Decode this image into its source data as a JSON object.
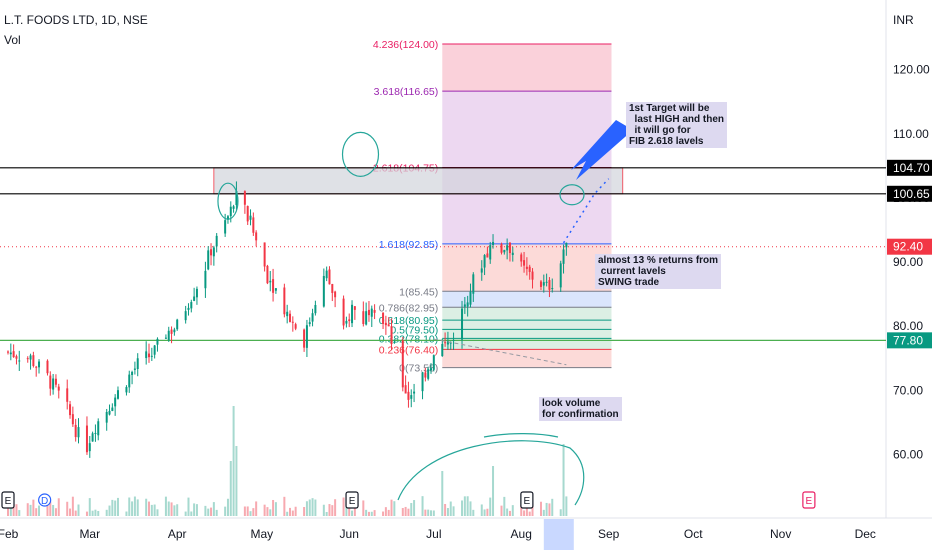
{
  "header": {
    "title": "L.T. FOODS LTD, 1D, NSE",
    "volume_label": "Vol",
    "currency": "INR"
  },
  "chart_data": {
    "type": "candlestick",
    "title": "L.T. FOODS LTD, 1D, NSE",
    "currency": "INR",
    "ylim": [
      55.4,
      126.5
    ],
    "y_ticks": [
      60,
      70,
      80,
      90,
      100,
      110,
      120
    ],
    "y_tick_labels": [
      "60.00",
      "70.00",
      "80.00",
      "90.00",
      "100.00",
      "110.00",
      "120.00"
    ],
    "x_labels": [
      "Feb",
      "Mar",
      "Apr",
      "May",
      "Jun",
      "Jul",
      "Aug",
      "Sep",
      "Oct",
      "Nov",
      "Dec"
    ],
    "x_label_days": [
      0,
      29,
      60,
      90,
      121,
      151,
      182,
      213,
      243,
      274,
      304
    ],
    "last_day": 198,
    "closes": [
      {
        "day": 0,
        "close": 76
      },
      {
        "day": 8,
        "close": 75
      },
      {
        "day": 14,
        "close": 72
      },
      {
        "day": 20,
        "close": 68
      },
      {
        "day": 25,
        "close": 63
      },
      {
        "day": 27,
        "close": 60
      },
      {
        "day": 30,
        "close": 64
      },
      {
        "day": 35,
        "close": 67
      },
      {
        "day": 41,
        "close": 71
      },
      {
        "day": 46,
        "close": 74
      },
      {
        "day": 52,
        "close": 76
      },
      {
        "day": 56,
        "close": 79
      },
      {
        "day": 60,
        "close": 80
      },
      {
        "day": 64,
        "close": 84
      },
      {
        "day": 69,
        "close": 88
      },
      {
        "day": 72,
        "close": 92
      },
      {
        "day": 75,
        "close": 94
      },
      {
        "day": 78,
        "close": 97
      },
      {
        "day": 81,
        "close": 100
      },
      {
        "day": 83,
        "close": 99
      },
      {
        "day": 86,
        "close": 96
      },
      {
        "day": 89,
        "close": 92
      },
      {
        "day": 92,
        "close": 88
      },
      {
        "day": 96,
        "close": 85
      },
      {
        "day": 99,
        "close": 82
      },
      {
        "day": 102,
        "close": 80
      },
      {
        "day": 104,
        "close": 76
      },
      {
        "day": 107,
        "close": 81
      },
      {
        "day": 110,
        "close": 86
      },
      {
        "day": 113,
        "close": 88
      },
      {
        "day": 116,
        "close": 84
      },
      {
        "day": 119,
        "close": 79
      },
      {
        "day": 122,
        "close": 83
      },
      {
        "day": 126,
        "close": 81
      },
      {
        "day": 129,
        "close": 84
      },
      {
        "day": 132,
        "close": 82
      },
      {
        "day": 135,
        "close": 79
      },
      {
        "day": 138,
        "close": 75
      },
      {
        "day": 140,
        "close": 71
      },
      {
        "day": 142,
        "close": 69
      },
      {
        "day": 145,
        "close": 71
      },
      {
        "day": 148,
        "close": 73
      },
      {
        "day": 151,
        "close": 75
      },
      {
        "day": 154,
        "close": 77
      },
      {
        "day": 157,
        "close": 77.5
      },
      {
        "day": 160,
        "close": 81
      },
      {
        "day": 163,
        "close": 85
      },
      {
        "day": 166,
        "close": 88
      },
      {
        "day": 169,
        "close": 91
      },
      {
        "day": 172,
        "close": 93
      },
      {
        "day": 175,
        "close": 92
      },
      {
        "day": 177,
        "close": 93
      },
      {
        "day": 180,
        "close": 91
      },
      {
        "day": 182,
        "close": 89
      },
      {
        "day": 185,
        "close": 88
      },
      {
        "day": 188,
        "close": 87
      },
      {
        "day": 191,
        "close": 86
      },
      {
        "day": 193,
        "close": 87
      },
      {
        "day": 195,
        "close": 88
      },
      {
        "day": 197,
        "close": 92
      },
      {
        "day": 198,
        "close": 92.4
      }
    ],
    "price_labels": [
      {
        "value": 104.7,
        "label": "104.70",
        "style": "black"
      },
      {
        "value": 100.65,
        "label": "100.65",
        "style": "black"
      },
      {
        "value": 92.4,
        "label": "92.40",
        "style": "red"
      },
      {
        "value": 77.8,
        "label": "77.80",
        "style": "green"
      }
    ],
    "fibonacci": {
      "start_day": 154,
      "end_day": 214,
      "levels": [
        {
          "ratio": "4.236",
          "price": 124.0,
          "label": "4.236(124.00)",
          "fill": "#f9c9d3",
          "line": "#e91e63"
        },
        {
          "ratio": "3.618",
          "price": 116.65,
          "label": "3.618(116.65)",
          "fill": "#ead1ee",
          "line": "#9c27b0"
        },
        {
          "ratio": "2.618",
          "price": 104.75,
          "label": "2.618(104.75)",
          "fill": "#ead1ee",
          "line": "#e91e63"
        },
        {
          "ratio": "1.618",
          "price": 92.85,
          "label": "1.618(92.85)",
          "fill": "#fbd4d1",
          "line": "#2962ff"
        },
        {
          "ratio": "1",
          "price": 85.45,
          "label": "1(85.45)",
          "fill": "#d4e1fb",
          "line": "#787b86"
        },
        {
          "ratio": "0.786",
          "price": 82.95,
          "label": "0.786(82.95)",
          "fill": "#d6ecdf",
          "line": "#787b86"
        },
        {
          "ratio": "0.618",
          "price": 80.95,
          "label": "0.618(80.95)",
          "fill": "#d6ecdf",
          "line": "#089981"
        },
        {
          "ratio": "0.5",
          "price": 79.5,
          "label": "0.5(79.50)",
          "fill": "#d6ecdf",
          "line": "#089981"
        },
        {
          "ratio": "0.382",
          "price": 78.1,
          "label": "0.382(78.10)",
          "fill": "#d6ecdf",
          "line": "#089981"
        },
        {
          "ratio": "0.236",
          "price": 76.4,
          "label": "0.236(76.40)",
          "fill": "#fbd4d1",
          "line": "#f23645"
        },
        {
          "ratio": "0",
          "price": 73.55,
          "label": "0(73.55)",
          "fill": "",
          "line": "#787b86"
        }
      ]
    },
    "resistance_zone": {
      "low": 100.65,
      "high": 104.7,
      "start_day": 73,
      "end_day": 218
    },
    "horizontal_lines": [
      {
        "value": 104.7,
        "color": "#000000"
      },
      {
        "value": 100.65,
        "color": "#000000"
      },
      {
        "value": 77.8,
        "color": "#4caf50"
      }
    ],
    "event_markers": [
      {
        "day": 0,
        "type": "E"
      },
      {
        "day": 13,
        "type": "D"
      },
      {
        "day": 122,
        "type": "E"
      },
      {
        "day": 184,
        "type": "E"
      },
      {
        "day": 284,
        "type": "E"
      }
    ]
  },
  "annotations": {
    "target_note": "1st Target will be\n  last HIGH and then\n  it will go for\nFIB 2.618 lavels",
    "returns_note": "almost 13 % returns from\n current lavels\nSWING trade",
    "volume_note": "look volume\nfor confirmation"
  },
  "colors": {
    "up": "#089981",
    "down": "#f23645",
    "vol_up": "#a6d9cf",
    "vol_down": "#f7a9b0",
    "annotation_bg": "#ddd9f0",
    "circle": "#26a69a",
    "arrow": "#2962ff"
  }
}
